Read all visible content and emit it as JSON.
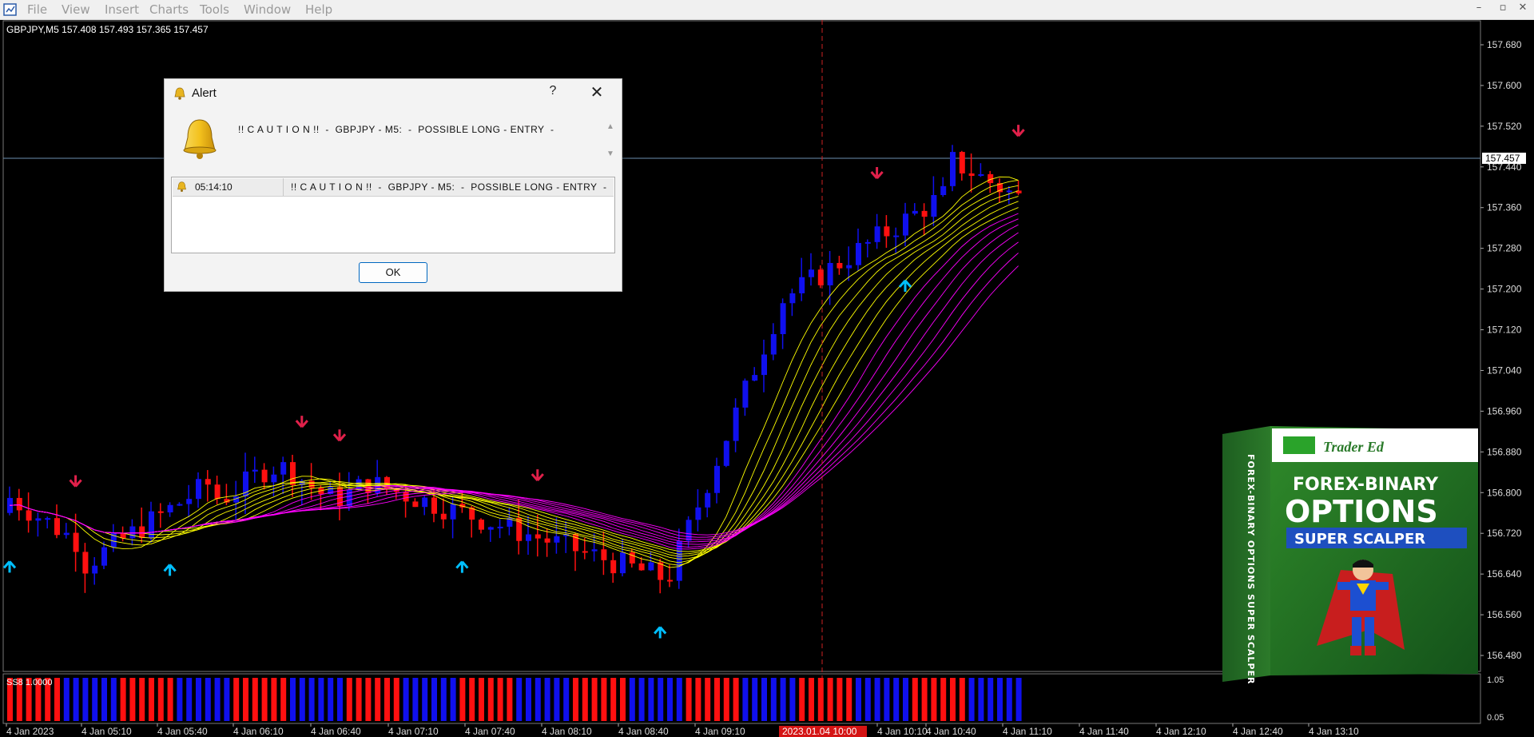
{
  "menu": {
    "items": [
      "File",
      "View",
      "Insert",
      "Charts",
      "Tools",
      "Window",
      "Help"
    ],
    "window_controls": [
      "–",
      "▫",
      "✕"
    ]
  },
  "chart": {
    "symbol_info": "GBPJPY,M5  157.408 157.493 157.365 157.457",
    "current_price_label": "157.457",
    "price_axis": [
      "157.680",
      "157.600",
      "157.520",
      "157.440",
      "157.360",
      "157.280",
      "157.200",
      "157.120",
      "157.040",
      "156.960",
      "156.880",
      "156.800",
      "156.720",
      "156.640",
      "156.560",
      "156.480"
    ],
    "time_axis": [
      "4 Jan 2023",
      "4 Jan 05:10",
      "4 Jan 05:40",
      "4 Jan 06:10",
      "4 Jan 06:40",
      "4 Jan 07:10",
      "4 Jan 07:40",
      "4 Jan 08:10",
      "4 Jan 08:40",
      "4 Jan 09:10",
      "4 Jan 10:10",
      "4 Jan 10:40",
      "4 Jan 11:10",
      "4 Jan 11:40",
      "4 Jan 12:10",
      "4 Jan 12:40",
      "4 Jan 13:10"
    ],
    "crosshair_time_label": "2023.01.04 10:00",
    "subwindow_label": "SS8 1.0000",
    "subwindow_axis": [
      "1.05",
      "0.05"
    ],
    "colors": {
      "bull": "#1010ee",
      "bear": "#ff1010",
      "ribbon_yellow": "#ffff00",
      "ribbon_magenta": "#ff00ff",
      "arrow_up": "#00bfff",
      "arrow_down": "#e0204a",
      "crosshair": "#cc2222"
    }
  },
  "promo": {
    "brand": "Trader Ed",
    "line1": "FOREX-BINARY",
    "line2": "OPTIONS",
    "line3": "SUPER SCALPER",
    "spine": "FOREX-BINARY OPTIONS SUPER SCALPER"
  },
  "alert_dialog": {
    "title": "Alert",
    "help": "?",
    "close": "✕",
    "message": "!! C A U T I O N !!  -  GBPJPY - M5:  -  POSSIBLE LONG - ENTRY  -",
    "log": [
      {
        "time": "05:14:10",
        "message": "!! C A U T I O N !!  -  GBPJPY - M5:  -  POSSIBLE LONG - ENTRY  -"
      }
    ],
    "ok_label": "OK"
  }
}
